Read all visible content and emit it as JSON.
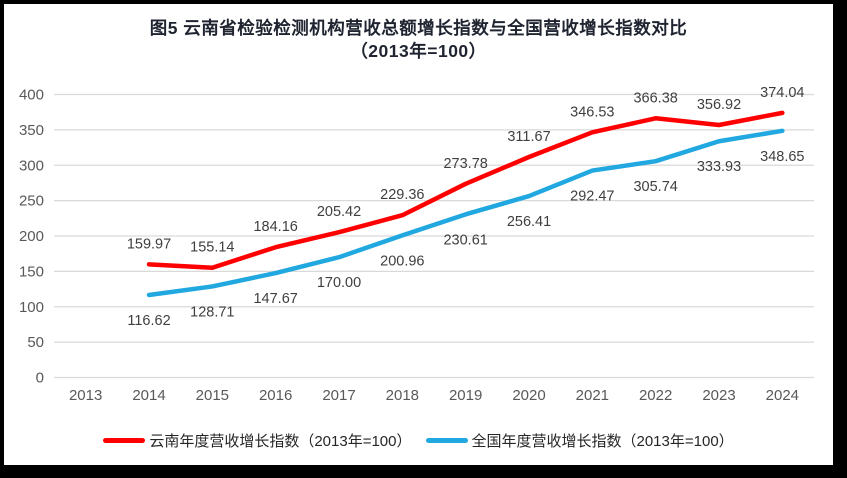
{
  "frame": {
    "border_color": "#000000",
    "background": "#ffffff"
  },
  "title": {
    "line1": "图5  云南省检验检测机构营收总额增长指数与全国营收增长指数对比",
    "line2": "（2013年=100）"
  },
  "legend": [
    {
      "label": "云南年度营收增长指数（2013年=100）",
      "color": "#ff0000"
    },
    {
      "label": "全国年度营收增长指数（2013年=100）",
      "color": "#21a8e0"
    }
  ],
  "chart_data": {
    "type": "line",
    "title": "图5 云南省检验检测机构营收总额增长指数与全国营收增长指数对比（2013年=100）",
    "categories": [
      "2013",
      "2014",
      "2015",
      "2016",
      "2017",
      "2018",
      "2019",
      "2020",
      "2021",
      "2022",
      "2023",
      "2024"
    ],
    "series": [
      {
        "name": "云南年度营收增长指数（2013年=100）",
        "color": "#ff0000",
        "values": [
          null,
          159.97,
          155.14,
          184.16,
          205.42,
          229.36,
          273.78,
          311.67,
          346.53,
          366.38,
          356.92,
          374.04
        ],
        "labels": [
          "",
          "159.97",
          "155.14",
          "184.16",
          "205.42",
          "229.36",
          "273.78",
          "311.67",
          "346.53",
          "366.38",
          "356.92",
          "374.04"
        ],
        "label_side": "above"
      },
      {
        "name": "全国年度营收增长指数（2013年=100）",
        "color": "#21a8e0",
        "values": [
          null,
          116.62,
          128.71,
          147.67,
          170.0,
          200.96,
          230.61,
          256.41,
          292.47,
          305.74,
          333.93,
          348.65
        ],
        "labels": [
          "",
          "116.62",
          "128.71",
          "147.67",
          "170.00",
          "200.96",
          "230.61",
          "256.41",
          "292.47",
          "305.74",
          "333.93",
          "348.65"
        ],
        "label_side": "below"
      }
    ],
    "xlabel": "",
    "ylabel": "",
    "ylim": [
      0,
      400
    ],
    "ytick_step": 50,
    "yticks": [
      "0",
      "50",
      "100",
      "150",
      "200",
      "250",
      "300",
      "350",
      "400"
    ],
    "grid": true,
    "legend_position": "bottom",
    "gridline_color": "#d9d9d9",
    "axis_label_color": "#595959",
    "data_label_color": "#3f3f3f"
  }
}
